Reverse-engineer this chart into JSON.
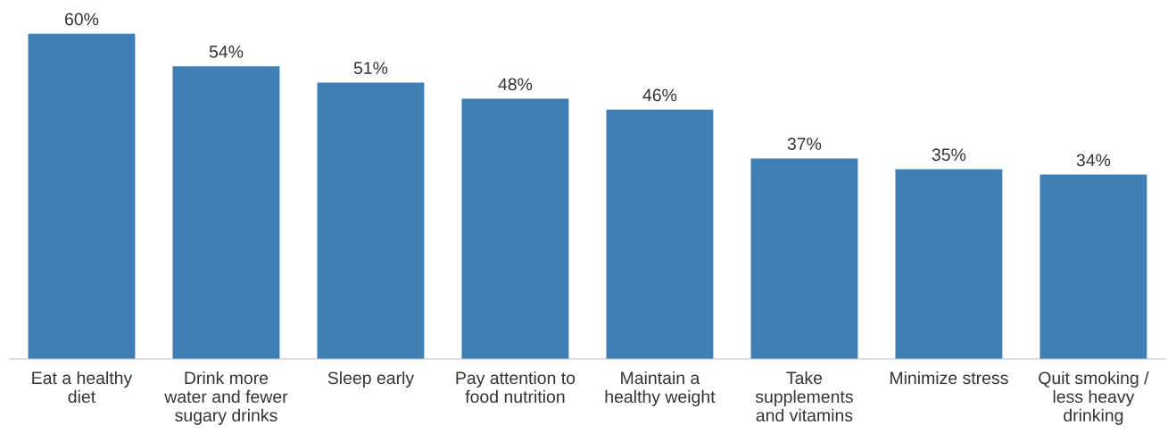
{
  "chart_data": {
    "type": "bar",
    "categories": [
      "Eat a healthy\ndiet",
      "Drink more\nwater and fewer\nsugary drinks",
      "Sleep early",
      "Pay attention to\nfood nutrition",
      "Maintain a\nhealthy weight",
      "Take\nsupplements\nand vitamins",
      "Minimize stress",
      "Quit smoking /\nless heavy\ndrinking"
    ],
    "values": [
      60,
      54,
      51,
      48,
      46,
      37,
      35,
      34
    ],
    "value_labels": [
      "60%",
      "54%",
      "51%",
      "48%",
      "46%",
      "37%",
      "35%",
      "34%"
    ],
    "color": "#3f7fb5",
    "grid": false,
    "legend": false
  }
}
